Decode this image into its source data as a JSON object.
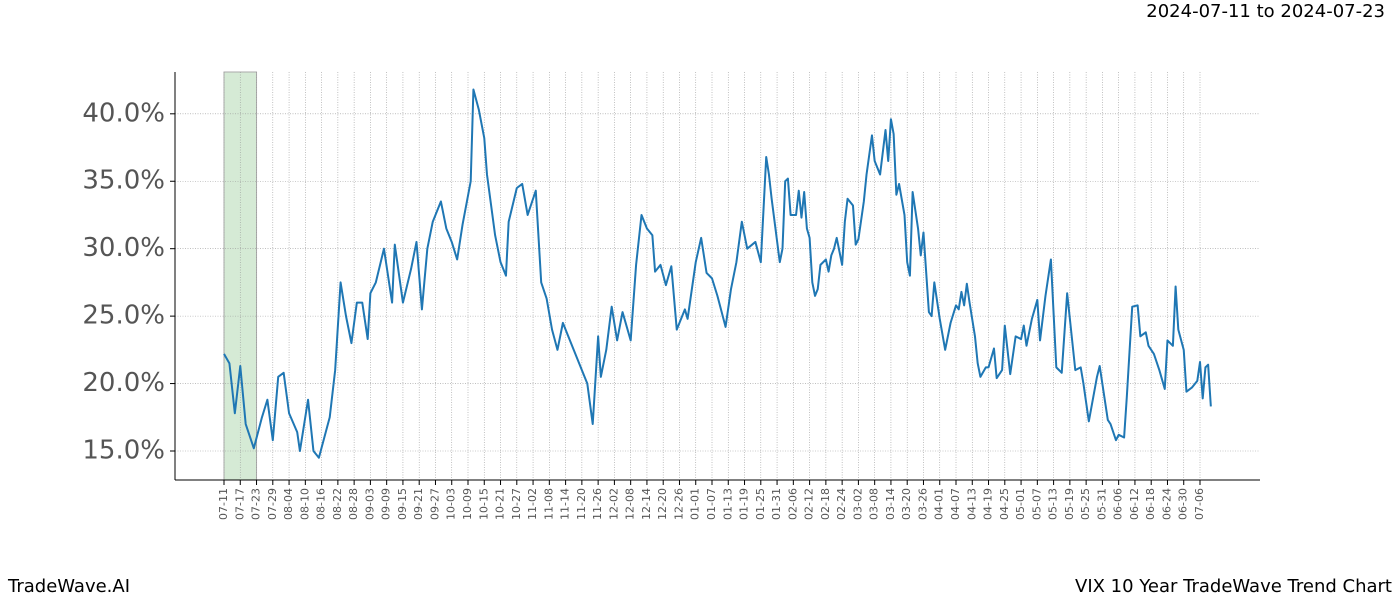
{
  "chart_data": {
    "type": "line",
    "header": "2024-07-11 to 2024-07-23",
    "footer_left": "TradeWave.AI",
    "footer_right": "VIX 10 Year TradeWave Trend Chart",
    "highlight": [
      "07-11",
      "07-23"
    ],
    "highlight_color": "#d5ead5",
    "color": "#1f77b4",
    "grid": true,
    "ylim": [
      12.85,
      43.1
    ],
    "yticks": [
      {
        "value": 15,
        "label": "15.0%"
      },
      {
        "value": 20,
        "label": "20.0%"
      },
      {
        "value": 25,
        "label": "25.0%"
      },
      {
        "value": 30,
        "label": "30.0%"
      },
      {
        "value": 35,
        "label": "35.0%"
      },
      {
        "value": 40,
        "label": "40.0%"
      }
    ],
    "xticks": [
      "07-11",
      "07-17",
      "07-23",
      "07-29",
      "08-04",
      "08-10",
      "08-16",
      "08-22",
      "08-28",
      "09-03",
      "09-09",
      "09-15",
      "09-21",
      "09-27",
      "10-03",
      "10-09",
      "10-15",
      "10-21",
      "10-27",
      "11-02",
      "11-08",
      "11-14",
      "11-20",
      "11-26",
      "12-02",
      "12-08",
      "12-14",
      "12-20",
      "12-26",
      "01-01",
      "01-07",
      "01-13",
      "01-19",
      "01-25",
      "01-31",
      "02-06",
      "02-12",
      "02-18",
      "02-24",
      "03-02",
      "03-08",
      "03-14",
      "03-20",
      "03-26",
      "04-01",
      "04-07",
      "04-13",
      "04-19",
      "04-25",
      "05-01",
      "05-07",
      "05-13",
      "05-19",
      "05-25",
      "05-31",
      "06-06",
      "06-12",
      "06-18",
      "06-24",
      "06-30",
      "07-06"
    ],
    "x": [
      "07-11",
      "07-13",
      "07-15",
      "07-17",
      "07-19",
      "07-22",
      "07-25",
      "07-27",
      "07-29",
      "07-31",
      "08-02",
      "08-04",
      "08-07",
      "08-08",
      "08-11",
      "08-13",
      "08-15",
      "08-17",
      "08-19",
      "08-21",
      "08-23",
      "08-25",
      "08-27",
      "08-29",
      "08-31",
      "09-02",
      "09-03",
      "09-05",
      "09-08",
      "09-11",
      "09-12",
      "09-15",
      "09-18",
      "09-20",
      "09-22",
      "09-24",
      "09-26",
      "09-29",
      "10-01",
      "10-03",
      "10-05",
      "10-07",
      "10-10",
      "10-11",
      "10-13",
      "10-15",
      "10-16",
      "10-19",
      "10-21",
      "10-23",
      "10-24",
      "10-27",
      "10-29",
      "10-31",
      "11-03",
      "11-05",
      "11-07",
      "11-09",
      "11-11",
      "11-13",
      "11-15",
      "11-17",
      "11-20",
      "11-22",
      "11-24",
      "11-26",
      "11-27",
      "11-29",
      "12-01",
      "12-03",
      "12-05",
      "12-08",
      "12-10",
      "12-12",
      "12-14",
      "12-16",
      "12-17",
      "12-19",
      "12-21",
      "12-23",
      "12-25",
      "12-28",
      "12-29",
      "01-01",
      "01-03",
      "01-05",
      "01-07",
      "01-09",
      "01-12",
      "01-14",
      "01-16",
      "01-18",
      "01-20",
      "01-23",
      "01-25",
      "01-27",
      "01-28",
      "01-29",
      "02-01",
      "02-02",
      "02-03",
      "02-04",
      "02-05",
      "02-07",
      "02-08",
      "02-09",
      "02-10",
      "02-11",
      "02-12",
      "02-13",
      "02-14",
      "02-15",
      "02-16",
      "02-18",
      "02-19",
      "02-20",
      "02-21",
      "02-22",
      "02-24",
      "02-25",
      "02-26",
      "02-28",
      "03-01",
      "03-02",
      "03-04",
      "03-05",
      "03-07",
      "03-08",
      "03-10",
      "03-12",
      "03-13",
      "03-14",
      "03-15",
      "03-16",
      "03-17",
      "03-19",
      "03-20",
      "03-21",
      "03-22",
      "03-24",
      "03-25",
      "03-26",
      "03-28",
      "03-29",
      "03-30",
      "04-01",
      "04-03",
      "04-05",
      "04-07",
      "04-08",
      "04-09",
      "04-10",
      "04-11",
      "04-12",
      "04-14",
      "04-15",
      "04-16",
      "04-18",
      "04-19",
      "04-21",
      "04-22",
      "04-24",
      "04-25",
      "04-27",
      "04-29",
      "05-01",
      "05-02",
      "05-03",
      "05-05",
      "05-07",
      "05-08",
      "05-10",
      "05-12",
      "05-14",
      "05-16",
      "05-18",
      "05-21",
      "05-23",
      "05-24",
      "05-26",
      "05-29",
      "05-30",
      "06-02",
      "06-03",
      "06-05",
      "06-06",
      "06-08",
      "06-09",
      "06-11",
      "06-13",
      "06-14",
      "06-16",
      "06-17",
      "06-19",
      "06-21",
      "06-23",
      "06-24",
      "06-26",
      "06-27",
      "06-28",
      "06-30",
      "07-01",
      "07-03",
      "07-05",
      "07-06",
      "07-07",
      "07-08",
      "07-09",
      "07-10"
    ],
    "values": [
      22.2,
      21.5,
      17.8,
      21.3,
      17,
      15.2,
      17.5,
      18.8,
      15.8,
      20.5,
      20.8,
      17.8,
      16.4,
      15,
      18.8,
      15,
      14.5,
      16,
      17.5,
      21,
      27.5,
      25,
      23,
      26,
      26,
      23.3,
      26.7,
      27.5,
      30,
      26,
      30.3,
      26,
      28.5,
      30.5,
      25.5,
      30,
      32,
      33.5,
      31.5,
      30.5,
      29.2,
      31.8,
      35,
      41.8,
      40.3,
      38.2,
      35.5,
      31,
      29,
      28,
      32,
      34.5,
      34.8,
      32.5,
      34.3,
      27.5,
      26.3,
      24,
      22.5,
      24.5,
      23.5,
      22.5,
      21,
      20,
      17,
      23.5,
      20.5,
      22.5,
      25.7,
      23.2,
      25.3,
      23.2,
      28.8,
      32.5,
      31.5,
      31,
      28.3,
      28.8,
      27.3,
      28.7,
      24,
      25.5,
      24.8,
      29,
      30.8,
      28.2,
      27.8,
      26.5,
      24.2,
      27,
      29,
      32,
      30,
      30.5,
      29,
      36.8,
      35.5,
      33.7,
      29,
      30,
      35,
      35.2,
      32.5,
      32.5,
      34.3,
      32.3,
      34.2,
      31.5,
      30.8,
      27.5,
      26.5,
      27,
      28.8,
      29.2,
      28.3,
      29.5,
      30,
      30.8,
      28.8,
      32,
      33.7,
      33.2,
      30.3,
      30.7,
      33.5,
      35.5,
      38.4,
      36.5,
      35.5,
      38.8,
      36.5,
      39.6,
      38.5,
      34,
      34.8,
      32.5,
      29,
      28,
      34.2,
      31.5,
      29.5,
      31.2,
      25.3,
      25,
      27.5,
      24.8,
      22.5,
      24.5,
      25.8,
      25.5,
      26.8,
      25.8,
      27.4,
      26,
      23.5,
      21.5,
      20.5,
      21.2,
      21.2,
      22.6,
      20.4,
      21,
      24.3,
      20.7,
      23.5,
      23.3,
      24.3,
      22.8,
      24.8,
      26.2,
      23.2,
      26.5,
      29.2,
      21.2,
      20.8,
      26.7,
      21,
      21.2,
      20,
      17.2,
      20.5,
      21.3,
      17.3,
      17,
      15.8,
      16.2,
      16,
      19,
      25.7,
      25.8,
      23.5,
      23.8,
      22.8,
      22.2,
      21,
      19.6,
      23.2,
      22.8,
      27.2,
      24,
      22.5,
      19.4,
      19.7,
      20.2,
      21.6,
      18.9,
      21.2,
      21.4,
      18.3
    ]
  }
}
